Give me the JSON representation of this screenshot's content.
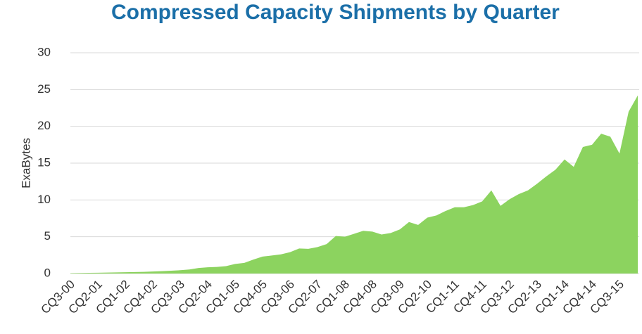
{
  "chart_data": {
    "type": "area",
    "title": "Compressed Capacity Shipments by Quarter",
    "y_label": "ExaBytes",
    "categories": [
      "CQ3-00",
      null,
      null,
      "CQ2-01",
      null,
      null,
      "CQ1-02",
      null,
      null,
      "CQ4-02",
      null,
      null,
      "CQ3-03",
      null,
      null,
      "CQ2-04",
      null,
      null,
      "CQ1-05",
      null,
      null,
      "CQ4-05",
      null,
      null,
      "CQ3-06",
      null,
      null,
      "CQ2-07",
      null,
      null,
      "CQ1-08",
      null,
      null,
      "CQ4-08",
      null,
      null,
      "CQ3-09",
      null,
      null,
      "CQ2-10",
      null,
      null,
      "CQ1-11",
      null,
      null,
      "CQ4-11",
      null,
      null,
      "CQ3-12",
      null,
      null,
      "CQ2-13",
      null,
      null,
      "CQ1-14",
      null,
      null,
      "CQ4-14",
      null,
      null,
      "CQ3-15",
      null,
      null
    ],
    "values": [
      0.05,
      0.07,
      0.09,
      0.11,
      0.13,
      0.15,
      0.18,
      0.2,
      0.23,
      0.27,
      0.32,
      0.38,
      0.45,
      0.55,
      0.75,
      0.85,
      0.9,
      1.0,
      1.3,
      1.45,
      1.9,
      2.3,
      2.45,
      2.6,
      2.9,
      3.4,
      3.35,
      3.6,
      4.0,
      5.1,
      5.0,
      5.4,
      5.8,
      5.7,
      5.3,
      5.5,
      6.0,
      7.0,
      6.6,
      7.6,
      7.9,
      8.5,
      9.0,
      9.0,
      9.3,
      9.8,
      11.3,
      9.2,
      10.1,
      10.8,
      11.3,
      12.2,
      13.2,
      14.1,
      15.5,
      14.5,
      17.2,
      17.5,
      19.0,
      18.6,
      16.3,
      22.0,
      24.2
    ],
    "color": "#8cd35f",
    "ylim": [
      0,
      30
    ],
    "yticks": [
      0,
      5,
      10,
      15,
      20,
      25,
      30
    ],
    "grid": true
  }
}
